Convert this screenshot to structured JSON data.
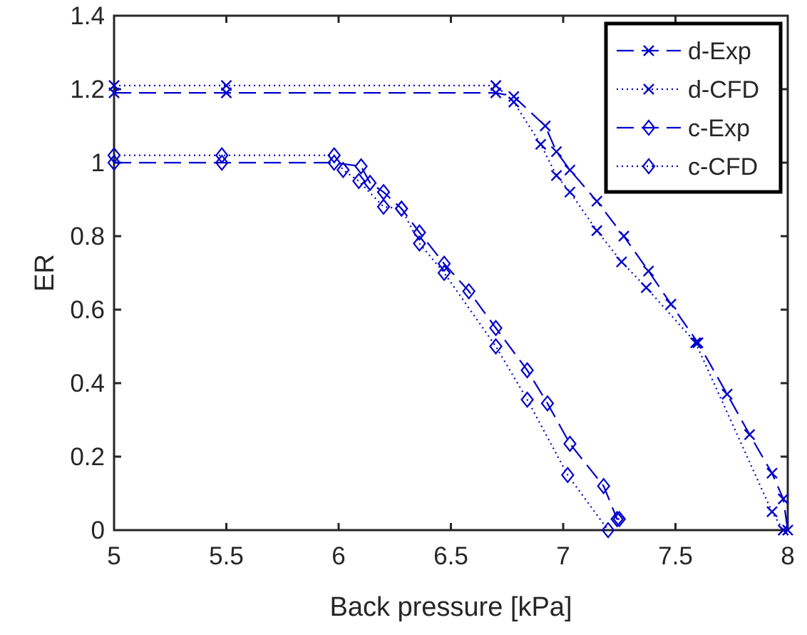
{
  "chart_data": {
    "type": "line",
    "title": "",
    "xlabel": "Back pressure [kPa]",
    "ylabel": "ER",
    "xlim": [
      5,
      8
    ],
    "ylim": [
      0,
      1.4
    ],
    "xticks": [
      5,
      5.5,
      6,
      6.5,
      7,
      7.5,
      8
    ],
    "xtick_labels": [
      "5",
      "5.5",
      "6",
      "6.5",
      "7",
      "7.5",
      "8"
    ],
    "yticks": [
      0,
      0.2,
      0.4,
      0.6,
      0.8,
      1,
      1.2,
      1.4
    ],
    "ytick_labels": [
      "0",
      "0.2",
      "0.4",
      "0.6",
      "0.8",
      "1",
      "1.2",
      "1.4"
    ],
    "grid": false,
    "legend_position": "top-right",
    "color": "#0000cc",
    "series": [
      {
        "name": "d-Exp",
        "line_style": "dashed",
        "marker": "x",
        "x": [
          5.0,
          5.5,
          6.7,
          6.78,
          6.92,
          6.97,
          7.03,
          7.15,
          7.27,
          7.38,
          7.48,
          7.6,
          7.73,
          7.83,
          7.93,
          7.98,
          8.0
        ],
        "y": [
          1.19,
          1.19,
          1.19,
          1.18,
          1.1,
          1.03,
          0.98,
          0.895,
          0.8,
          0.705,
          0.615,
          0.51,
          0.37,
          0.26,
          0.155,
          0.085,
          0.0
        ]
      },
      {
        "name": "d-CFD",
        "line_style": "dotted",
        "marker": "x",
        "x": [
          5.0,
          5.5,
          6.7,
          6.78,
          6.9,
          6.97,
          7.03,
          7.15,
          7.26,
          7.37,
          7.59,
          7.93,
          7.98
        ],
        "y": [
          1.21,
          1.21,
          1.21,
          1.165,
          1.05,
          0.965,
          0.92,
          0.815,
          0.73,
          0.66,
          0.51,
          0.05,
          0.0
        ]
      },
      {
        "name": "c-Exp",
        "line_style": "dashed",
        "marker": "diamond",
        "x": [
          5.0,
          5.48,
          5.98,
          6.1,
          6.14,
          6.2,
          6.28,
          6.36,
          6.47,
          6.58,
          6.7,
          6.84,
          6.93,
          7.03,
          7.18,
          7.24,
          7.25
        ],
        "y": [
          1.0,
          1.0,
          1.0,
          0.99,
          0.945,
          0.92,
          0.875,
          0.81,
          0.725,
          0.65,
          0.55,
          0.435,
          0.345,
          0.235,
          0.12,
          0.03,
          0.03
        ]
      },
      {
        "name": "c-CFD",
        "line_style": "dotted",
        "marker": "diamond",
        "x": [
          5.0,
          5.48,
          5.98,
          6.02,
          6.09,
          6.2,
          6.28,
          6.36,
          6.47,
          6.7,
          6.84,
          7.02,
          7.2
        ],
        "y": [
          1.02,
          1.02,
          1.02,
          0.98,
          0.95,
          0.88,
          0.875,
          0.78,
          0.7,
          0.5,
          0.355,
          0.15,
          0.0
        ]
      }
    ]
  }
}
